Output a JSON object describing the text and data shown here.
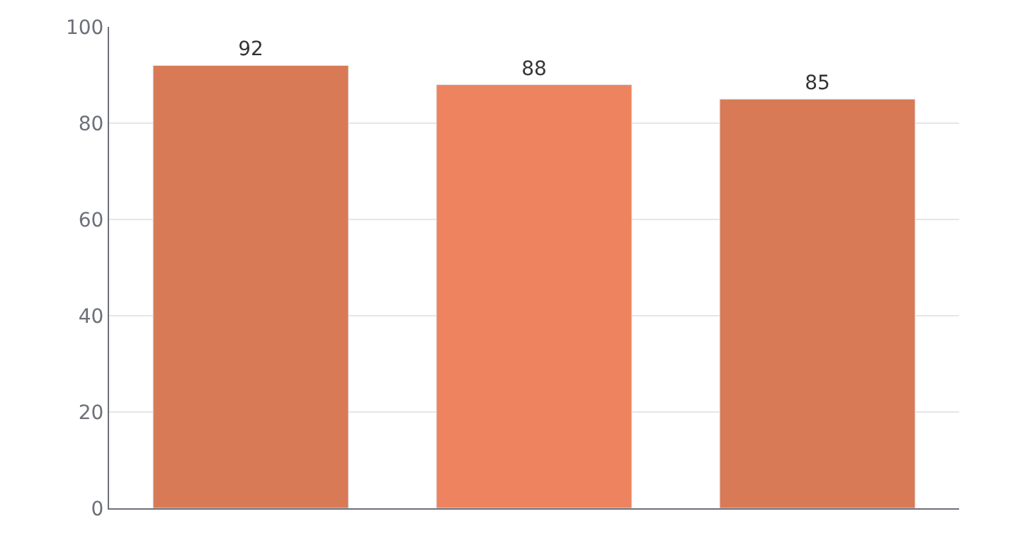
{
  "chart_data": {
    "type": "bar",
    "categories": [
      null,
      null,
      null
    ],
    "values": [
      92,
      88,
      85
    ],
    "colors": [
      "#d87a56",
      "#ee8360",
      "#d87a56"
    ],
    "ylim": [
      0,
      100
    ],
    "yticks": [
      0,
      20,
      40,
      60,
      80,
      100
    ],
    "grid": "y",
    "data_labels": true
  }
}
